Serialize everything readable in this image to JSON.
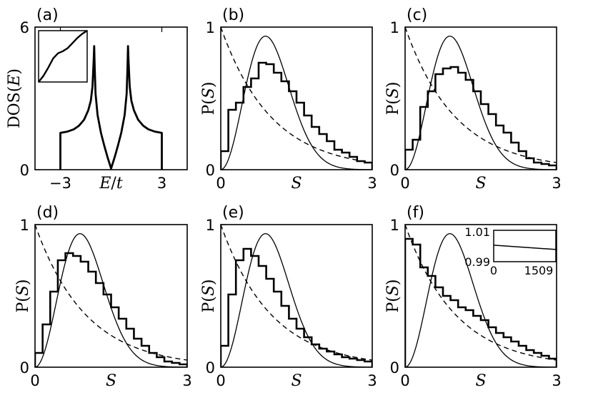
{
  "figure": {
    "title": ""
  },
  "chart_data": [
    {
      "panel": "(a)",
      "type": "line",
      "xlabel_parts": [
        "E",
        "/",
        "t"
      ],
      "ylabel_parts": [
        "DOS(",
        "E",
        ")"
      ],
      "xlim": [
        -4.5,
        4.5
      ],
      "ylim": [
        0,
        6
      ],
      "xticks": [
        "−3",
        "3"
      ],
      "yticks": [
        "0",
        "6"
      ],
      "series": [
        {
          "name": "DOS",
          "style": "thick",
          "x": [
            -3.0,
            -3.0,
            -2.6,
            -2.2,
            -1.9,
            -1.6,
            -1.35,
            -1.2,
            -1.1,
            -1.03,
            -1.0,
            -0.97,
            -0.92,
            -0.8,
            -0.6,
            -0.4,
            -0.2,
            0.0,
            0.2,
            0.4,
            0.6,
            0.8,
            0.92,
            0.97,
            1.0,
            1.03,
            1.1,
            1.2,
            1.35,
            1.6,
            1.9,
            2.2,
            2.6,
            3.0,
            3.0
          ],
          "y": [
            0.0,
            1.55,
            1.6,
            1.7,
            1.85,
            2.1,
            2.5,
            2.9,
            3.5,
            4.6,
            5.2,
            4.3,
            3.2,
            2.3,
            1.55,
            1.0,
            0.5,
            0.05,
            0.5,
            1.0,
            1.55,
            2.3,
            3.2,
            4.3,
            5.2,
            4.6,
            3.5,
            2.9,
            2.5,
            2.1,
            1.85,
            1.7,
            1.6,
            1.55,
            0.0
          ]
        }
      ],
      "inset": {
        "type": "line",
        "description": "integrated DOS",
        "x": [
          0,
          0.1,
          0.2,
          0.3,
          0.4,
          0.5,
          0.6,
          0.7,
          0.8,
          0.9,
          1.0
        ],
        "y": [
          0.0,
          0.12,
          0.28,
          0.46,
          0.56,
          0.6,
          0.66,
          0.76,
          0.86,
          0.94,
          1.0
        ]
      }
    },
    {
      "panel": "(b)",
      "type": "histogram",
      "xlabel": "S",
      "ylabel_parts": [
        "P(",
        "S",
        ")"
      ],
      "xlim": [
        0,
        3
      ],
      "ylim": [
        0,
        1
      ],
      "xticks": [
        "0",
        "3"
      ],
      "yticks": [
        "0",
        "1"
      ],
      "bin_width": 0.15,
      "hist": [
        0.13,
        0.42,
        0.47,
        0.58,
        0.64,
        0.75,
        0.74,
        0.68,
        0.62,
        0.55,
        0.47,
        0.38,
        0.3,
        0.25,
        0.2,
        0.14,
        0.12,
        0.09,
        0.06,
        0.05
      ],
      "curves": [
        {
          "name": "Wigner surmise",
          "style": "thin-solid",
          "formula": "32/pi^2 s^2 exp(-4 s^2/pi)"
        },
        {
          "name": "Poisson",
          "style": "dashed",
          "formula": "exp(-s)"
        }
      ]
    },
    {
      "panel": "(c)",
      "type": "histogram",
      "xlabel": "S",
      "ylabel_parts": [
        "P(",
        "S",
        ")"
      ],
      "xlim": [
        0,
        3
      ],
      "ylim": [
        0,
        1
      ],
      "xticks": [
        "0",
        "3"
      ],
      "yticks": [
        "0",
        "1"
      ],
      "bin_width": 0.15,
      "hist": [
        0.14,
        0.21,
        0.44,
        0.55,
        0.67,
        0.71,
        0.72,
        0.68,
        0.63,
        0.55,
        0.46,
        0.39,
        0.31,
        0.26,
        0.19,
        0.13,
        0.08,
        0.05,
        0.04,
        0.03
      ],
      "curves": [
        {
          "name": "Wigner surmise",
          "style": "thin-solid",
          "formula": "32/pi^2 s^2 exp(-4 s^2/pi)"
        },
        {
          "name": "Poisson",
          "style": "dashed",
          "formula": "exp(-s)"
        }
      ]
    },
    {
      "panel": "(d)",
      "type": "histogram",
      "xlabel": "S",
      "ylabel_parts": [
        "P(",
        "S",
        ")"
      ],
      "xlim": [
        0,
        3
      ],
      "ylim": [
        0,
        1
      ],
      "xticks": [
        "0",
        "3"
      ],
      "yticks": [
        "0",
        "1"
      ],
      "bin_width": 0.15,
      "hist": [
        0.1,
        0.3,
        0.53,
        0.75,
        0.8,
        0.78,
        0.74,
        0.67,
        0.59,
        0.51,
        0.42,
        0.34,
        0.27,
        0.2,
        0.15,
        0.1,
        0.07,
        0.04,
        0.03,
        0.02
      ],
      "curves": [
        {
          "name": "Wigner surmise",
          "style": "thin-solid",
          "formula": "32/pi^2 s^2 exp(-4 s^2/pi)"
        },
        {
          "name": "Poisson",
          "style": "dashed",
          "formula": "exp(-s)"
        }
      ]
    },
    {
      "panel": "(e)",
      "type": "histogram",
      "xlabel": "S",
      "ylabel_parts": [
        "P(",
        "S",
        ")"
      ],
      "xlim": [
        0,
        3
      ],
      "ylim": [
        0,
        1
      ],
      "xticks": [
        "0",
        "3"
      ],
      "yticks": [
        "0",
        "1"
      ],
      "bin_width": 0.15,
      "hist": [
        0.15,
        0.51,
        0.75,
        0.83,
        0.78,
        0.71,
        0.62,
        0.53,
        0.43,
        0.34,
        0.27,
        0.21,
        0.16,
        0.13,
        0.11,
        0.09,
        0.07,
        0.06,
        0.05,
        0.04
      ],
      "curves": [
        {
          "name": "Wigner surmise",
          "style": "thin-solid",
          "formula": "32/pi^2 s^2 exp(-4 s^2/pi)"
        },
        {
          "name": "Poisson",
          "style": "dashed",
          "formula": "exp(-s)"
        }
      ]
    },
    {
      "panel": "(f)",
      "type": "histogram",
      "xlabel": "S",
      "ylabel_parts": [
        "P(",
        "S",
        ")"
      ],
      "xlim": [
        0,
        3
      ],
      "ylim": [
        0,
        1
      ],
      "xticks": [
        "0",
        "3"
      ],
      "yticks": [
        "0",
        "1"
      ],
      "bin_width": 0.15,
      "hist": [
        0.9,
        0.86,
        0.7,
        0.64,
        0.56,
        0.5,
        0.47,
        0.42,
        0.4,
        0.36,
        0.33,
        0.28,
        0.24,
        0.21,
        0.18,
        0.15,
        0.12,
        0.1,
        0.08,
        0.06
      ],
      "curves": [
        {
          "name": "Wigner surmise",
          "style": "thin-solid",
          "formula": "32/pi^2 s^2 exp(-4 s^2/pi)"
        },
        {
          "name": "Poisson",
          "style": "dashed",
          "formula": "exp(-s)"
        }
      ],
      "inset": {
        "type": "line",
        "xlim": [
          0,
          1509
        ],
        "ylim": [
          0.99,
          1.01
        ],
        "xticks": [
          "0",
          "1509"
        ],
        "yticks": [
          "1.01",
          "0.99"
        ],
        "x": [
          0,
          1509
        ],
        "y": [
          1.0005,
          0.9978
        ]
      }
    }
  ]
}
